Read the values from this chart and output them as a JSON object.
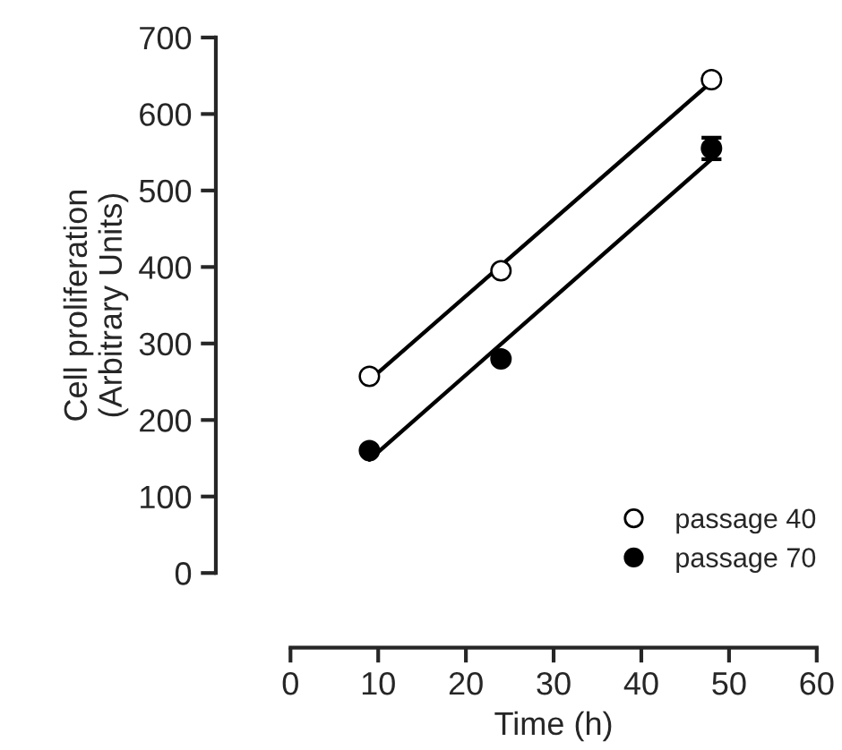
{
  "chart_data": {
    "type": "scatter",
    "xlabel": "Time (h)",
    "ylabel": "Cell proliferation\n(Arbitrary Units)",
    "xlim": [
      0,
      60
    ],
    "xticks": [
      0,
      10,
      20,
      30,
      40,
      50,
      60
    ],
    "ylim": [
      0,
      700
    ],
    "yticks": [
      0,
      100,
      200,
      300,
      400,
      500,
      600,
      700
    ],
    "grid": false,
    "legend": "bottom right",
    "series": [
      {
        "name": "passage 40",
        "marker": "circle",
        "color": "#ffffff",
        "x": [
          9,
          24,
          48
        ],
        "values": [
          257,
          395,
          645
        ]
      },
      {
        "name": "passage 70",
        "marker": "circle",
        "color": "#000000",
        "x": [
          9,
          24,
          48
        ],
        "values": [
          160,
          280,
          555
        ],
        "errors": [
          null,
          null,
          14
        ]
      },
      {
        "type": "line",
        "color": "#000000",
        "x": [
          9,
          48
        ],
        "values": [
          252,
          642
        ]
      },
      {
        "type": "line",
        "color": "#000000",
        "x": [
          9,
          48
        ],
        "values": [
          148,
          541
        ]
      }
    ]
  }
}
